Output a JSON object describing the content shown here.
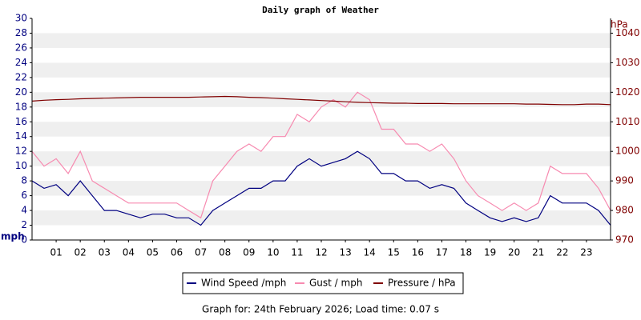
{
  "chart_data": {
    "type": "line",
    "title": "Daily graph of Weather",
    "y_label": "mph",
    "y2_label": "hPa",
    "footer": "Graph for: 24th February 2026; Load time: 0.07 s",
    "legend": "bottom",
    "grid": "bands",
    "xlim": [
      0,
      24
    ],
    "xticks": [
      {
        "value": 1,
        "label": "01"
      },
      {
        "value": 2,
        "label": "02"
      },
      {
        "value": 3,
        "label": "03"
      },
      {
        "value": 4,
        "label": "04"
      },
      {
        "value": 5,
        "label": "05"
      },
      {
        "value": 6,
        "label": "06"
      },
      {
        "value": 7,
        "label": "07"
      },
      {
        "value": 8,
        "label": "08"
      },
      {
        "value": 9,
        "label": "09"
      },
      10,
      11,
      12,
      13,
      14,
      15,
      16,
      17,
      18,
      19,
      20,
      21,
      22,
      23
    ],
    "ylim": [
      0,
      30
    ],
    "yticks": [
      0,
      2,
      4,
      6,
      8,
      10,
      12,
      14,
      16,
      18,
      20,
      22,
      24,
      26,
      28,
      30
    ],
    "y2lim": [
      970,
      1045
    ],
    "y2ticks": [
      970,
      980,
      990,
      1000,
      1010,
      1020,
      1030,
      1040
    ],
    "x": [
      0,
      0.5,
      1,
      1.5,
      2,
      2.5,
      3,
      3.5,
      4,
      4.5,
      5,
      5.5,
      6,
      6.5,
      7,
      7.5,
      8,
      8.5,
      9,
      9.5,
      10,
      10.5,
      11,
      11.5,
      12,
      12.5,
      13,
      13.5,
      14,
      14.5,
      15,
      15.5,
      16,
      16.5,
      17,
      17.5,
      18,
      18.5,
      19,
      19.5,
      20,
      20.5,
      21,
      21.5,
      22,
      22.5,
      23,
      23.5,
      24
    ],
    "series": [
      {
        "name": "Gust / mph",
        "color": "#f78ab0",
        "values": [
          12,
          10,
          11,
          9,
          12,
          8,
          7,
          6,
          5,
          5,
          5,
          5,
          5,
          4,
          3,
          8,
          10,
          12,
          13,
          12,
          14,
          14,
          17,
          16,
          18,
          19,
          18,
          20,
          19,
          15,
          15,
          13,
          13,
          12,
          13,
          11,
          8,
          6,
          5,
          4,
          5,
          4,
          5,
          10,
          9,
          9,
          9,
          7,
          4
        ]
      },
      {
        "name": "Wind Speed /mph",
        "color": "#000080",
        "values": [
          8,
          7,
          7.5,
          6,
          8,
          6,
          4,
          4,
          3.5,
          3,
          3.5,
          3.5,
          3,
          3,
          2,
          4,
          5,
          6,
          7,
          7,
          8,
          8,
          10,
          11,
          10,
          10.5,
          11,
          12,
          11,
          9,
          9,
          8,
          8,
          7,
          7.5,
          7,
          5,
          4,
          3,
          2.5,
          3,
          2.5,
          3,
          6,
          5,
          5,
          5,
          4,
          2
        ]
      },
      {
        "name": "Pressure / hPa",
        "color": "#800000",
        "axis": "y2",
        "values": [
          1017,
          1017.3,
          1017.5,
          1017.6,
          1017.8,
          1017.9,
          1018,
          1018.1,
          1018.2,
          1018.3,
          1018.3,
          1018.3,
          1018.3,
          1018.3,
          1018.4,
          1018.5,
          1018.6,
          1018.5,
          1018.3,
          1018.2,
          1018,
          1017.8,
          1017.6,
          1017.4,
          1017.2,
          1017,
          1016.8,
          1016.6,
          1016.5,
          1016.4,
          1016.3,
          1016.3,
          1016.2,
          1016.2,
          1016.2,
          1016.1,
          1016.1,
          1016.1,
          1016.1,
          1016.1,
          1016.1,
          1016,
          1016,
          1015.9,
          1015.8,
          1015.8,
          1016,
          1016,
          1015.8
        ]
      }
    ]
  }
}
